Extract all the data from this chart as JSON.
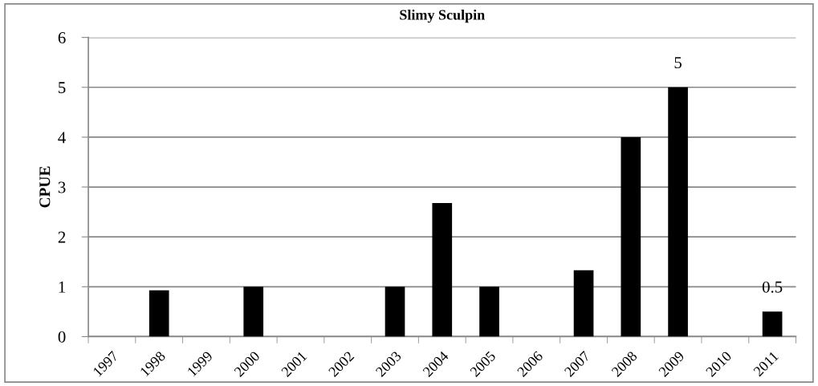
{
  "chart_data": {
    "type": "bar",
    "title": "Slimy Sculpin",
    "ylabel": "CPUE",
    "categories": [
      "1997",
      "1998",
      "1999",
      "2000",
      "2001",
      "2002",
      "2003",
      "2004",
      "2005",
      "2006",
      "2007",
      "2008",
      "2009",
      "2010",
      "2011"
    ],
    "values": [
      null,
      0.93,
      null,
      1.0,
      null,
      null,
      1.0,
      2.68,
      1.0,
      null,
      1.33,
      4.0,
      5,
      null,
      0.5
    ],
    "value_labels": [
      null,
      null,
      null,
      null,
      null,
      null,
      null,
      null,
      null,
      null,
      null,
      null,
      "5",
      null,
      "0.5"
    ],
    "color": "#000000",
    "ylim": [
      0,
      6
    ],
    "yticks": [
      0,
      1,
      2,
      3,
      4,
      5,
      6
    ],
    "grid": "y",
    "legend": false
  }
}
